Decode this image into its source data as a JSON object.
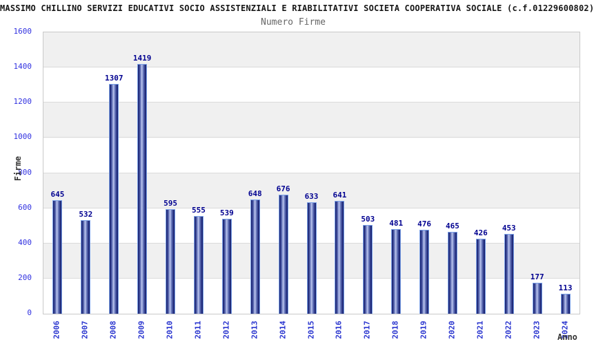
{
  "header": {
    "title": "MASSIMO CHILLINO SERVIZI EDUCATIVI SOCIO ASSISTENZIALI E RIABILITATIVI SOCIETA COOPERATIVA SOCIALE (c.f.01229600802)",
    "subtitle": "Numero Firme"
  },
  "chart_data": {
    "type": "bar",
    "title": "Numero Firme",
    "xlabel": "Anno",
    "ylabel": "Firme",
    "categories": [
      "2006",
      "2007",
      "2008",
      "2009",
      "2010",
      "2011",
      "2012",
      "2013",
      "2014",
      "2015",
      "2016",
      "2017",
      "2018",
      "2019",
      "2020",
      "2021",
      "2022",
      "2023",
      "2024"
    ],
    "values": [
      645,
      532,
      1307,
      1419,
      595,
      555,
      539,
      648,
      676,
      633,
      641,
      503,
      481,
      476,
      465,
      426,
      453,
      177,
      113
    ],
    "ylim": [
      0,
      1600
    ],
    "y_ticks": [
      0,
      200,
      400,
      600,
      800,
      1000,
      1200,
      1400,
      1600
    ],
    "grid": true,
    "legend": "none",
    "colors": {
      "bar_dark": "#172069",
      "bar_highlight": "#bcc5ee",
      "bar_outline": "#7aa0e8",
      "value_label": "#000090",
      "tick_label": "#3030e0",
      "x_tick_label": "#2a35cf",
      "axis_title": "#333333",
      "band_gray": "#f0f0f0",
      "band_white": "#ffffff",
      "title_text": "#161616",
      "subtitle_text": "#666666"
    }
  }
}
